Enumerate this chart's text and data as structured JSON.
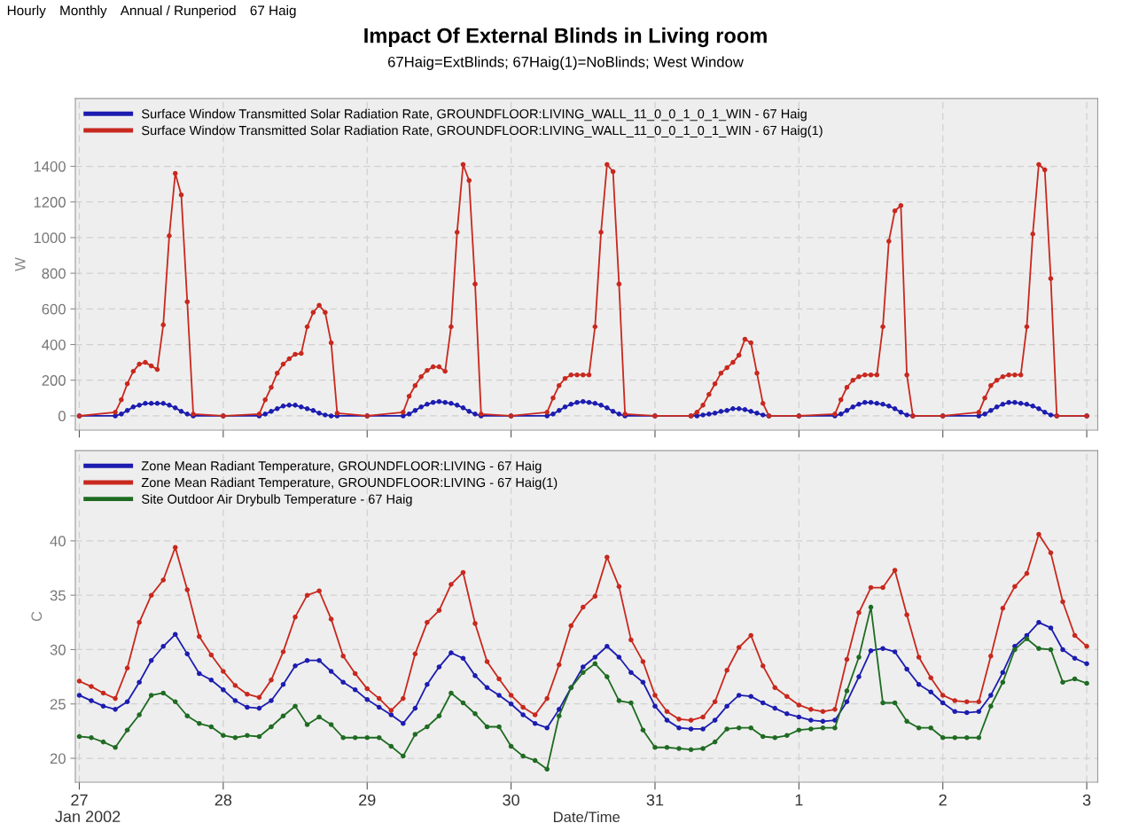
{
  "chart_data": [
    {
      "type": "line",
      "title": "Impact Of External Blinds in Living room",
      "subtitle": "67Haig=ExtBlinds; 67Haig(1)=NoBlinds; West Window",
      "ylabel": "W",
      "annotations": [
        "Hourly",
        "Monthly",
        "Annual / Runperiod",
        "67 Haig"
      ],
      "xlim": [
        "2002-01-26T23:20",
        "2002-02-03T01:50"
      ],
      "ylim": [
        -80,
        1780
      ],
      "yticks": [
        0,
        200,
        400,
        600,
        800,
        1000,
        1200,
        1400
      ],
      "xticks": [
        {
          "value": "2002-01-27",
          "label": null
        },
        {
          "value": "2002-01-28",
          "label": null
        },
        {
          "value": "2002-01-29",
          "label": null
        },
        {
          "value": "2002-01-30",
          "label": null
        },
        {
          "value": "2002-01-31",
          "label": null
        },
        {
          "value": "2002-02-01",
          "label": null
        },
        {
          "value": "2002-02-02",
          "label": null
        },
        {
          "value": "2002-02-03",
          "label": null
        }
      ],
      "tick_labels": "y",
      "grid": true,
      "legend": "top left",
      "marker": "circle",
      "line_style": "solid",
      "series": [
        {
          "name": "Surface Window Transmitted Solar Radiation Rate, GROUNDFLOOR:LIVING_WALL_11_0_0_1_0_1_WIN - 67 Haig",
          "color": "#1c1cb0",
          "x": [
            "2002-01-27T00:00",
            "2002-01-27T06:00",
            "2002-01-27T07:00",
            "2002-01-27T08:00",
            "2002-01-27T09:00",
            "2002-01-27T10:00",
            "2002-01-27T11:00",
            "2002-01-27T12:00",
            "2002-01-27T13:00",
            "2002-01-27T14:00",
            "2002-01-27T15:00",
            "2002-01-27T16:00",
            "2002-01-27T17:00",
            "2002-01-27T18:00",
            "2002-01-27T19:00",
            "2002-01-28T00:00",
            "2002-01-28T06:00",
            "2002-01-28T07:00",
            "2002-01-28T08:00",
            "2002-01-28T09:00",
            "2002-01-28T10:00",
            "2002-01-28T11:00",
            "2002-01-28T12:00",
            "2002-01-28T13:00",
            "2002-01-28T14:00",
            "2002-01-28T15:00",
            "2002-01-28T16:00",
            "2002-01-28T17:00",
            "2002-01-28T18:00",
            "2002-01-28T19:00",
            "2002-01-29T00:00",
            "2002-01-29T06:00",
            "2002-01-29T07:00",
            "2002-01-29T08:00",
            "2002-01-29T09:00",
            "2002-01-29T10:00",
            "2002-01-29T11:00",
            "2002-01-29T12:00",
            "2002-01-29T13:00",
            "2002-01-29T14:00",
            "2002-01-29T15:00",
            "2002-01-29T16:00",
            "2002-01-29T17:00",
            "2002-01-29T18:00",
            "2002-01-29T19:00",
            "2002-01-30T00:00",
            "2002-01-30T06:00",
            "2002-01-30T07:00",
            "2002-01-30T08:00",
            "2002-01-30T09:00",
            "2002-01-30T10:00",
            "2002-01-30T11:00",
            "2002-01-30T12:00",
            "2002-01-30T13:00",
            "2002-01-30T14:00",
            "2002-01-30T15:00",
            "2002-01-30T16:00",
            "2002-01-30T17:00",
            "2002-01-30T18:00",
            "2002-01-30T19:00",
            "2002-01-31T00:00",
            "2002-01-31T06:00",
            "2002-01-31T07:00",
            "2002-01-31T08:00",
            "2002-01-31T09:00",
            "2002-01-31T10:00",
            "2002-01-31T11:00",
            "2002-01-31T12:00",
            "2002-01-31T13:00",
            "2002-01-31T14:00",
            "2002-01-31T15:00",
            "2002-01-31T16:00",
            "2002-01-31T17:00",
            "2002-01-31T18:00",
            "2002-01-31T19:00",
            "2002-02-01T00:00",
            "2002-02-01T06:00",
            "2002-02-01T07:00",
            "2002-02-01T08:00",
            "2002-02-01T09:00",
            "2002-02-01T10:00",
            "2002-02-01T11:00",
            "2002-02-01T12:00",
            "2002-02-01T13:00",
            "2002-02-01T14:00",
            "2002-02-01T15:00",
            "2002-02-01T16:00",
            "2002-02-01T17:00",
            "2002-02-01T18:00",
            "2002-02-01T19:00",
            "2002-02-02T00:00",
            "2002-02-02T06:00",
            "2002-02-02T07:00",
            "2002-02-02T08:00",
            "2002-02-02T09:00",
            "2002-02-02T10:00",
            "2002-02-02T11:00",
            "2002-02-02T12:00",
            "2002-02-02T13:00",
            "2002-02-02T14:00",
            "2002-02-02T15:00",
            "2002-02-02T16:00",
            "2002-02-02T17:00",
            "2002-02-02T18:00",
            "2002-02-02T19:00",
            "2002-02-03T00:00"
          ],
          "values": [
            0,
            0,
            10,
            30,
            50,
            60,
            70,
            70,
            70,
            70,
            60,
            45,
            25,
            10,
            0,
            0,
            0,
            10,
            25,
            40,
            55,
            60,
            60,
            50,
            40,
            30,
            15,
            5,
            0,
            0,
            0,
            0,
            10,
            30,
            50,
            65,
            75,
            80,
            75,
            70,
            60,
            45,
            25,
            10,
            0,
            0,
            0,
            10,
            30,
            50,
            65,
            75,
            80,
            75,
            70,
            60,
            45,
            25,
            10,
            0,
            0,
            0,
            0,
            5,
            10,
            15,
            25,
            30,
            40,
            40,
            35,
            25,
            15,
            5,
            0,
            0,
            0,
            10,
            30,
            50,
            65,
            75,
            75,
            70,
            65,
            55,
            40,
            20,
            5,
            0,
            0,
            0,
            10,
            30,
            50,
            65,
            75,
            75,
            70,
            65,
            55,
            40,
            20,
            5,
            0,
            0
          ]
        },
        {
          "name": "Surface Window Transmitted Solar Radiation Rate, GROUNDFLOOR:LIVING_WALL_11_0_0_1_0_1_WIN - 67 Haig(1)",
          "color": "#c8281e",
          "x": [
            "2002-01-27T00:00",
            "2002-01-27T06:00",
            "2002-01-27T07:00",
            "2002-01-27T08:00",
            "2002-01-27T09:00",
            "2002-01-27T10:00",
            "2002-01-27T11:00",
            "2002-01-27T12:00",
            "2002-01-27T13:00",
            "2002-01-27T14:00",
            "2002-01-27T15:00",
            "2002-01-27T16:00",
            "2002-01-27T17:00",
            "2002-01-27T18:00",
            "2002-01-27T19:00",
            "2002-01-28T00:00",
            "2002-01-28T06:00",
            "2002-01-28T07:00",
            "2002-01-28T08:00",
            "2002-01-28T09:00",
            "2002-01-28T10:00",
            "2002-01-28T11:00",
            "2002-01-28T12:00",
            "2002-01-28T13:00",
            "2002-01-28T14:00",
            "2002-01-28T15:00",
            "2002-01-28T16:00",
            "2002-01-28T17:00",
            "2002-01-28T18:00",
            "2002-01-28T19:00",
            "2002-01-29T00:00",
            "2002-01-29T06:00",
            "2002-01-29T07:00",
            "2002-01-29T08:00",
            "2002-01-29T09:00",
            "2002-01-29T10:00",
            "2002-01-29T11:00",
            "2002-01-29T12:00",
            "2002-01-29T13:00",
            "2002-01-29T14:00",
            "2002-01-29T15:00",
            "2002-01-29T16:00",
            "2002-01-29T17:00",
            "2002-01-29T18:00",
            "2002-01-29T19:00",
            "2002-01-30T00:00",
            "2002-01-30T06:00",
            "2002-01-30T07:00",
            "2002-01-30T08:00",
            "2002-01-30T09:00",
            "2002-01-30T10:00",
            "2002-01-30T11:00",
            "2002-01-30T12:00",
            "2002-01-30T13:00",
            "2002-01-30T14:00",
            "2002-01-30T15:00",
            "2002-01-30T16:00",
            "2002-01-30T17:00",
            "2002-01-30T18:00",
            "2002-01-30T19:00",
            "2002-01-31T00:00",
            "2002-01-31T06:00",
            "2002-01-31T07:00",
            "2002-01-31T08:00",
            "2002-01-31T09:00",
            "2002-01-31T10:00",
            "2002-01-31T11:00",
            "2002-01-31T12:00",
            "2002-01-31T13:00",
            "2002-01-31T14:00",
            "2002-01-31T15:00",
            "2002-01-31T16:00",
            "2002-01-31T17:00",
            "2002-01-31T18:00",
            "2002-01-31T19:00",
            "2002-02-01T00:00",
            "2002-02-01T06:00",
            "2002-02-01T07:00",
            "2002-02-01T08:00",
            "2002-02-01T09:00",
            "2002-02-01T10:00",
            "2002-02-01T11:00",
            "2002-02-01T12:00",
            "2002-02-01T13:00",
            "2002-02-01T14:00",
            "2002-02-01T15:00",
            "2002-02-01T16:00",
            "2002-02-01T17:00",
            "2002-02-01T18:00",
            "2002-02-01T19:00",
            "2002-02-02T00:00",
            "2002-02-02T06:00",
            "2002-02-02T07:00",
            "2002-02-02T08:00",
            "2002-02-02T09:00",
            "2002-02-02T10:00",
            "2002-02-02T11:00",
            "2002-02-02T12:00",
            "2002-02-02T13:00",
            "2002-02-02T14:00",
            "2002-02-02T15:00",
            "2002-02-02T16:00",
            "2002-02-02T17:00",
            "2002-02-02T18:00",
            "2002-02-02T19:00",
            "2002-02-03T00:00"
          ],
          "values": [
            0,
            20,
            90,
            180,
            250,
            290,
            300,
            280,
            260,
            510,
            1010,
            1360,
            1240,
            640,
            10,
            0,
            10,
            90,
            160,
            240,
            290,
            320,
            345,
            350,
            500,
            580,
            620,
            580,
            410,
            15,
            0,
            20,
            110,
            170,
            220,
            255,
            275,
            275,
            250,
            500,
            1030,
            1410,
            1320,
            740,
            10,
            0,
            20,
            100,
            170,
            210,
            230,
            230,
            230,
            230,
            500,
            1030,
            1410,
            1370,
            740,
            10,
            0,
            0,
            20,
            60,
            120,
            180,
            240,
            270,
            300,
            340,
            430,
            410,
            240,
            70,
            0,
            0,
            10,
            90,
            160,
            200,
            220,
            230,
            230,
            230,
            500,
            980,
            1150,
            1180,
            230,
            0,
            0,
            20,
            100,
            170,
            200,
            220,
            230,
            230,
            230,
            500,
            1020,
            1410,
            1380,
            770,
            0,
            0
          ]
        }
      ]
    },
    {
      "type": "line",
      "xlabel": "Date/Time",
      "ylabel": "C",
      "annotations": [
        "Jan 2002"
      ],
      "xlim": [
        "2002-01-26T23:20",
        "2002-02-03T01:50"
      ],
      "ylim": [
        17.8,
        48.3
      ],
      "yticks": [
        20,
        25,
        30,
        35,
        40
      ],
      "xticks": [
        {
          "value": "2002-01-27",
          "label": "27"
        },
        {
          "value": "2002-01-28",
          "label": "28"
        },
        {
          "value": "2002-01-29",
          "label": "29"
        },
        {
          "value": "2002-01-30",
          "label": "30"
        },
        {
          "value": "2002-01-31",
          "label": "31"
        },
        {
          "value": "2002-02-01",
          "label": "1"
        },
        {
          "value": "2002-02-02",
          "label": "2"
        },
        {
          "value": "2002-02-03",
          "label": "3"
        }
      ],
      "grid": true,
      "legend": "top left",
      "marker": "circle",
      "line_style": "solid",
      "x": [
        "2002-01-27T00:00",
        "2002-01-27T02:00",
        "2002-01-27T04:00",
        "2002-01-27T06:00",
        "2002-01-27T08:00",
        "2002-01-27T10:00",
        "2002-01-27T12:00",
        "2002-01-27T14:00",
        "2002-01-27T16:00",
        "2002-01-27T18:00",
        "2002-01-27T20:00",
        "2002-01-27T22:00",
        "2002-01-28T00:00",
        "2002-01-28T02:00",
        "2002-01-28T04:00",
        "2002-01-28T06:00",
        "2002-01-28T08:00",
        "2002-01-28T10:00",
        "2002-01-28T12:00",
        "2002-01-28T14:00",
        "2002-01-28T16:00",
        "2002-01-28T18:00",
        "2002-01-28T20:00",
        "2002-01-28T22:00",
        "2002-01-29T00:00",
        "2002-01-29T02:00",
        "2002-01-29T04:00",
        "2002-01-29T06:00",
        "2002-01-29T08:00",
        "2002-01-29T10:00",
        "2002-01-29T12:00",
        "2002-01-29T14:00",
        "2002-01-29T16:00",
        "2002-01-29T18:00",
        "2002-01-29T20:00",
        "2002-01-29T22:00",
        "2002-01-30T00:00",
        "2002-01-30T02:00",
        "2002-01-30T04:00",
        "2002-01-30T06:00",
        "2002-01-30T08:00",
        "2002-01-30T10:00",
        "2002-01-30T12:00",
        "2002-01-30T14:00",
        "2002-01-30T16:00",
        "2002-01-30T18:00",
        "2002-01-30T20:00",
        "2002-01-30T22:00",
        "2002-01-31T00:00",
        "2002-01-31T02:00",
        "2002-01-31T04:00",
        "2002-01-31T06:00",
        "2002-01-31T08:00",
        "2002-01-31T10:00",
        "2002-01-31T12:00",
        "2002-01-31T14:00",
        "2002-01-31T16:00",
        "2002-01-31T18:00",
        "2002-01-31T20:00",
        "2002-01-31T22:00",
        "2002-02-01T00:00",
        "2002-02-01T02:00",
        "2002-02-01T04:00",
        "2002-02-01T06:00",
        "2002-02-01T08:00",
        "2002-02-01T10:00",
        "2002-02-01T12:00",
        "2002-02-01T14:00",
        "2002-02-01T16:00",
        "2002-02-01T18:00",
        "2002-02-01T20:00",
        "2002-02-01T22:00",
        "2002-02-02T00:00",
        "2002-02-02T02:00",
        "2002-02-02T04:00",
        "2002-02-02T06:00",
        "2002-02-02T08:00",
        "2002-02-02T10:00",
        "2002-02-02T12:00",
        "2002-02-02T14:00",
        "2002-02-02T16:00",
        "2002-02-02T18:00",
        "2002-02-02T20:00",
        "2002-02-02T22:00",
        "2002-02-03T00:00"
      ],
      "series": [
        {
          "name": "Zone Mean Radiant Temperature, GROUNDFLOOR:LIVING - 67 Haig",
          "color": "#1c1cb0",
          "values": [
            25.8,
            25.3,
            24.8,
            24.5,
            25.2,
            27.0,
            29.0,
            30.3,
            31.4,
            29.6,
            27.8,
            27.2,
            26.3,
            25.3,
            24.7,
            24.6,
            25.3,
            26.8,
            28.5,
            29.0,
            29.0,
            28.0,
            27.0,
            26.3,
            25.4,
            24.7,
            24.0,
            23.2,
            24.6,
            26.8,
            28.4,
            29.7,
            29.2,
            27.6,
            26.5,
            25.8,
            25.0,
            24.0,
            23.2,
            22.8,
            24.5,
            26.5,
            28.4,
            29.3,
            30.3,
            29.3,
            27.9,
            27.0,
            24.8,
            23.5,
            22.8,
            22.7,
            22.7,
            23.5,
            24.8,
            25.8,
            25.7,
            25.1,
            24.6,
            24.1,
            23.8,
            23.5,
            23.4,
            23.5,
            25.2,
            27.5,
            29.9,
            30.1,
            29.8,
            28.2,
            26.8,
            26.1,
            25.1,
            24.3,
            24.2,
            24.3,
            25.8,
            27.9,
            30.3,
            31.3,
            32.5,
            32.0,
            30.0,
            29.2,
            28.7
          ]
        },
        {
          "name": "Zone Mean Radiant Temperature, GROUNDFLOOR:LIVING - 67 Haig(1)",
          "color": "#c8281e",
          "values": [
            27.1,
            26.6,
            26.0,
            25.5,
            28.3,
            32.5,
            35.0,
            36.4,
            39.4,
            35.5,
            31.2,
            29.5,
            28.0,
            26.7,
            25.9,
            25.6,
            27.2,
            29.8,
            33.0,
            35.0,
            35.4,
            32.8,
            29.4,
            27.8,
            26.4,
            25.5,
            24.4,
            25.5,
            29.6,
            32.5,
            33.6,
            36.0,
            37.1,
            32.4,
            28.9,
            27.3,
            25.8,
            24.7,
            24.0,
            25.5,
            28.6,
            32.2,
            33.9,
            34.9,
            38.5,
            35.8,
            30.9,
            28.9,
            25.8,
            24.3,
            23.6,
            23.5,
            23.8,
            25.2,
            28.1,
            30.2,
            31.3,
            28.5,
            26.5,
            25.7,
            24.9,
            24.5,
            24.3,
            24.5,
            29.1,
            33.4,
            35.7,
            35.7,
            37.3,
            33.2,
            29.3,
            27.4,
            25.8,
            25.3,
            25.2,
            25.2,
            29.4,
            33.8,
            35.8,
            37.0,
            40.6,
            38.9,
            34.4,
            31.3,
            30.3
          ]
        },
        {
          "name": "Site Outdoor Air Drybulb Temperature - 67 Haig",
          "color": "#1f6b22",
          "values": [
            22.0,
            21.9,
            21.5,
            21.0,
            22.6,
            24.0,
            25.8,
            26.0,
            25.2,
            23.9,
            23.2,
            22.9,
            22.1,
            21.9,
            22.1,
            22.0,
            22.9,
            23.9,
            24.8,
            23.1,
            23.8,
            23.1,
            21.9,
            21.9,
            21.9,
            21.9,
            21.1,
            20.2,
            22.2,
            22.9,
            23.9,
            26.0,
            25.1,
            24.1,
            22.9,
            22.9,
            21.1,
            20.2,
            19.8,
            19.0,
            23.9,
            26.5,
            27.9,
            28.7,
            27.5,
            25.3,
            25.1,
            22.6,
            21.0,
            21.0,
            20.9,
            20.8,
            20.9,
            21.5,
            22.7,
            22.8,
            22.8,
            22.0,
            21.9,
            22.1,
            22.6,
            22.7,
            22.8,
            22.8,
            26.2,
            29.3,
            33.9,
            25.1,
            25.1,
            23.4,
            22.8,
            22.8,
            21.9,
            21.9,
            21.9,
            21.9,
            24.8,
            27.0,
            30.0,
            31.0,
            30.1,
            30.0,
            27.0,
            27.3,
            26.9
          ]
        }
      ]
    }
  ]
}
